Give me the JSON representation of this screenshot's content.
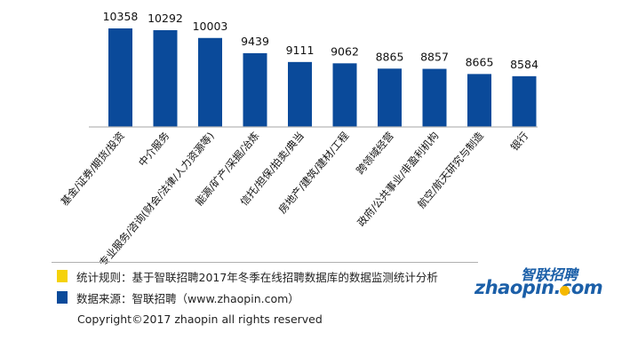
{
  "chart_data": {
    "type": "bar",
    "categories": [
      "基金/证券/期货/投资",
      "中介服务",
      "专业服务/咨询(财会/法律/人力资源等)",
      "能源/矿产/采掘/冶炼",
      "信托/担保/拍卖/典当",
      "房地产/建筑/建材/工程",
      "跨领域经营",
      "政府/公共事业/非盈利机构",
      "航空/航天研究与制造",
      "银行"
    ],
    "values": [
      10358,
      10292,
      10003,
      9439,
      9111,
      9062,
      8865,
      8857,
      8665,
      8584
    ],
    "data_labels": [
      "10358",
      "10292",
      "10003",
      "9439",
      "9111",
      "9062",
      "8865",
      "8857",
      "8665",
      "8584"
    ],
    "bar_color": "#0a4a9a",
    "ylim": [
      6700,
      10700
    ],
    "grid": false
  },
  "legend": [
    {
      "label": "统计规则：基于智联招聘2017年冬季在线招聘数据库的数据监测统计分析",
      "color": "#f5d20a"
    },
    {
      "label": "数据来源：智联招聘（www.zhaopin.com）",
      "color": "#0a4a9a"
    }
  ],
  "footer": {
    "copyright": "Copyright©2017 zhaopin all rights reserved"
  },
  "logo": {
    "cn": "智联招聘",
    "en": "zhaopin.com"
  }
}
